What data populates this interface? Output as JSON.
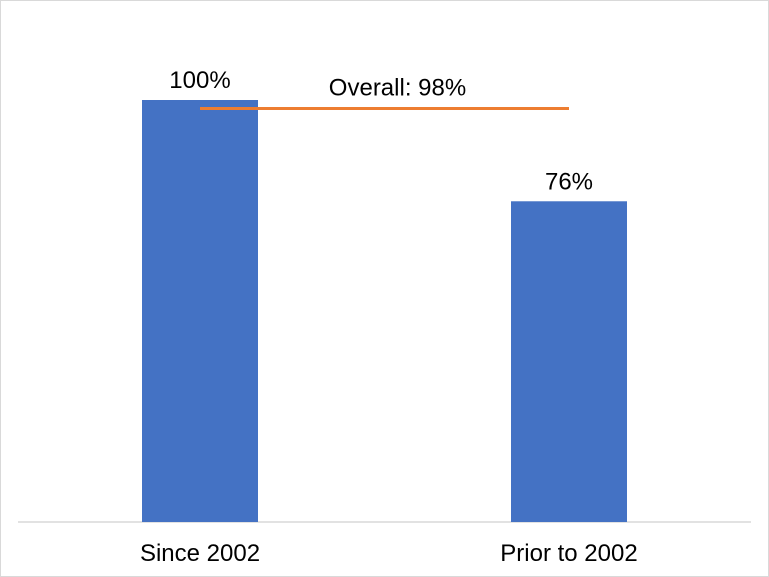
{
  "chart_data": {
    "type": "bar",
    "categories": [
      "Since 2002",
      "Prior to 2002"
    ],
    "values": [
      100,
      76
    ],
    "value_labels": [
      "100%",
      "76%"
    ],
    "ylim": [
      0,
      100
    ],
    "grid": false,
    "reference_line": {
      "value": 98,
      "label": "Overall: 98%"
    },
    "colors": {
      "bar": "#4472c4",
      "reference_line": "#ed7d31",
      "axis": "#d9d9d9"
    }
  }
}
